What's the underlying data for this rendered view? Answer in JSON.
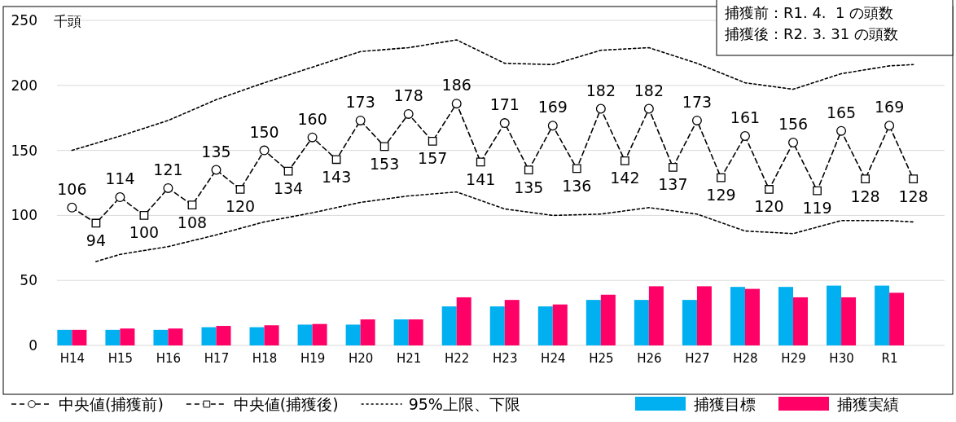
{
  "chart_data": {
    "type": "bar",
    "ylabel": "千頭",
    "annotations": [
      "捕獲前：R1. 4.  1 の頭数",
      "捕獲後：R2. 3. 31 の頭数"
    ],
    "categories": [
      "H14",
      null,
      "H15",
      null,
      "H16",
      null,
      "H17",
      null,
      "H18",
      null,
      "H19",
      null,
      "H20",
      null,
      "H21",
      null,
      "H22",
      null,
      "H23",
      null,
      "H24",
      null,
      "H25",
      null,
      "H26",
      null,
      "H27",
      null,
      "H28",
      null,
      "H29",
      null,
      "H30",
      null,
      "R1",
      null
    ],
    "ylim": [
      0,
      250
    ],
    "yticks": [
      0,
      50,
      100,
      150,
      200,
      250
    ],
    "grid": "y",
    "legend": "bottom",
    "series": [
      {
        "name": "中央値(捕獲前)",
        "type": "scatter",
        "color": "#000000",
        "marker": "circle",
        "line_style": "dashed",
        "values": [
          106,
          null,
          114,
          null,
          121,
          null,
          135,
          null,
          150,
          null,
          160,
          null,
          173,
          null,
          178,
          null,
          186,
          null,
          171,
          null,
          169,
          null,
          182,
          null,
          182,
          null,
          173,
          null,
          161,
          null,
          156,
          null,
          165,
          null,
          169,
          null
        ],
        "value_labels": [
          "106",
          null,
          "114",
          null,
          "121",
          null,
          "135",
          null,
          "150",
          null,
          "160",
          null,
          "173",
          null,
          "178",
          null,
          "186",
          null,
          "171",
          null,
          "169",
          null,
          "182",
          null,
          "182",
          null,
          "173",
          null,
          "161",
          null,
          "156",
          null,
          "165",
          null,
          "169",
          null
        ]
      },
      {
        "name": "中央値(捕獲後)",
        "type": "scatter",
        "color": "#000000",
        "marker": "square",
        "line_style": "dashed",
        "values": [
          null,
          94,
          null,
          100,
          null,
          108,
          null,
          120,
          null,
          134,
          null,
          143,
          null,
          153,
          null,
          157,
          null,
          141,
          null,
          135,
          null,
          136,
          null,
          142,
          null,
          137,
          null,
          129,
          null,
          120,
          null,
          119,
          null,
          128,
          null,
          128
        ],
        "value_labels": [
          null,
          "94",
          null,
          "100",
          null,
          "108",
          null,
          "120",
          null,
          "134",
          null,
          "143",
          null,
          "153",
          null,
          "157",
          null,
          "141",
          null,
          "135",
          null,
          "136",
          null,
          "142",
          null,
          "137",
          null,
          "129",
          null,
          "120",
          null,
          "119",
          null,
          "128",
          null,
          "128"
        ]
      },
      {
        "type": "line",
        "color": "#000000",
        "line_style": "dashed",
        "values": [
          106,
          94,
          114,
          100,
          121,
          108,
          135,
          120,
          150,
          134,
          160,
          143,
          173,
          153,
          178,
          157,
          186,
          141,
          171,
          135,
          169,
          136,
          182,
          142,
          182,
          137,
          173,
          129,
          161,
          120,
          156,
          119,
          165,
          128,
          169,
          128
        ]
      },
      {
        "name": "95%上限、下限",
        "type": "line",
        "color": "#000000",
        "line_style": "dotted",
        "values": [
          150,
          155.5,
          161,
          167,
          173,
          181,
          189,
          195.5,
          202,
          208,
          214,
          220,
          226,
          227.5,
          229,
          232,
          235,
          226,
          217,
          216.5,
          216,
          221.5,
          227,
          228,
          229,
          223,
          217,
          209.5,
          202,
          199.5,
          197,
          203,
          209,
          212,
          215,
          216
        ]
      },
      {
        "type": "line",
        "color": "#000000",
        "line_style": "dotted",
        "values": [
          null,
          64.5,
          70,
          73,
          76,
          80.5,
          85,
          90,
          95,
          98.5,
          102,
          106,
          110,
          112.5,
          115,
          116.5,
          118,
          111.5,
          105,
          102.5,
          100,
          100.5,
          101,
          103.5,
          106,
          103.5,
          101,
          94.5,
          88,
          87,
          86,
          91,
          96,
          96,
          96,
          95
        ]
      },
      {
        "name": "捕獲目標",
        "color": "#00b0f0",
        "values": [
          12,
          null,
          12,
          null,
          12,
          null,
          14,
          null,
          14,
          null,
          16,
          null,
          16,
          null,
          20,
          null,
          30,
          null,
          30,
          null,
          30,
          null,
          35,
          null,
          35,
          null,
          35,
          null,
          45,
          null,
          45,
          null,
          46,
          null,
          46,
          null
        ]
      },
      {
        "name": "捕獲実績",
        "color": "#ff0066",
        "values": [
          12,
          null,
          13,
          null,
          13,
          null,
          15,
          null,
          15.5,
          null,
          16.5,
          null,
          20,
          null,
          20,
          null,
          37,
          null,
          35,
          null,
          31.5,
          null,
          39,
          null,
          45.5,
          null,
          45.5,
          null,
          43.5,
          null,
          37,
          null,
          37,
          null,
          40.5,
          null
        ]
      }
    ]
  }
}
